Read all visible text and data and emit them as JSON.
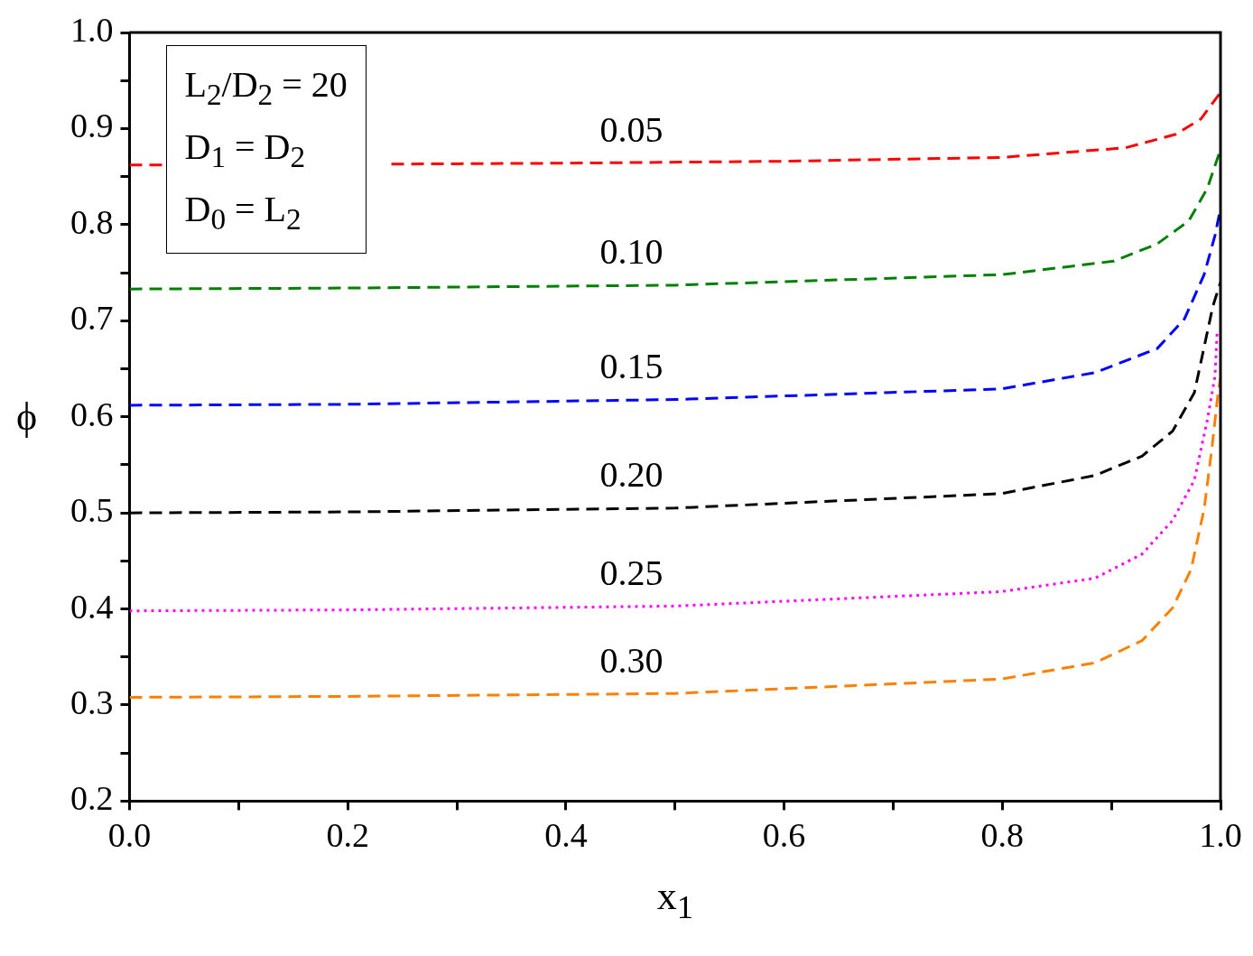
{
  "chart_data": {
    "type": "line",
    "xlabel": "x$_{1}$",
    "ylabel": "ϕ",
    "annotations": [
      "L$_{2}$/D$_{2}$ = 20",
      "D$_{1}$ = D$_{2}$",
      "D$_{0}$ = L$_{2}$"
    ],
    "xlim": [
      0,
      1
    ],
    "ylim": [
      0.2,
      1.0
    ],
    "xticks": [
      {
        "value": 0,
        "label": "0.0"
      },
      {
        "value": 0.1,
        "label": null
      },
      {
        "value": 0.2,
        "label": "0.2"
      },
      {
        "value": 0.3,
        "label": null
      },
      {
        "value": 0.4,
        "label": "0.4"
      },
      {
        "value": 0.5,
        "label": null
      },
      {
        "value": 0.6,
        "label": "0.6"
      },
      {
        "value": 0.7,
        "label": null
      },
      {
        "value": 0.8,
        "label": "0.8"
      },
      {
        "value": 0.9,
        "label": null
      },
      {
        "value": 1,
        "label": "1.0"
      }
    ],
    "yticks": [
      {
        "value": 0.2,
        "label": "0.2"
      },
      {
        "value": 0.25,
        "label": null
      },
      {
        "value": 0.3,
        "label": "0.3"
      },
      {
        "value": 0.35,
        "label": null
      },
      {
        "value": 0.4,
        "label": "0.4"
      },
      {
        "value": 0.45,
        "label": null
      },
      {
        "value": 0.5,
        "label": "0.5"
      },
      {
        "value": 0.55,
        "label": null
      },
      {
        "value": 0.6,
        "label": "0.6"
      },
      {
        "value": 0.65,
        "label": null
      },
      {
        "value": 0.7,
        "label": "0.7"
      },
      {
        "value": 0.75,
        "label": null
      },
      {
        "value": 0.8,
        "label": "0.8"
      },
      {
        "value": 0.85,
        "label": null
      },
      {
        "value": 0.9,
        "label": "0.9"
      },
      {
        "value": 0.95,
        "label": null
      },
      {
        "value": 1,
        "label": "1.0"
      }
    ],
    "grid": false,
    "legend": false,
    "marker": "none",
    "series": [
      {
        "name": "0.05",
        "color": "#ff0000",
        "line_style": "dashed",
        "x": [
          0,
          0.03,
          0.1,
          0.2,
          0.24,
          0.4,
          0.6,
          0.8,
          0.913,
          0.959,
          0.982,
          0.999
        ],
        "values": [
          0.862,
          0.862,
          null,
          null,
          0.863,
          0.864,
          0.866,
          0.87,
          0.88,
          0.894,
          0.91,
          0.936
        ]
      },
      {
        "name": "0.10",
        "color": "#008000",
        "line_style": "dashed",
        "x": [
          0,
          0.2,
          0.5,
          0.8,
          0.902,
          0.942,
          0.971,
          0.988,
          0.999
        ],
        "values": [
          0.733,
          0.734,
          0.737,
          0.748,
          0.762,
          0.78,
          0.804,
          0.838,
          0.875
        ]
      },
      {
        "name": "0.15",
        "color": "#0000ff",
        "line_style": "dashed",
        "x": [
          0,
          0.2,
          0.5,
          0.799,
          0.885,
          0.942,
          0.967,
          0.985,
          0.995,
          1.0
        ],
        "values": [
          0.612,
          0.613,
          0.618,
          0.629,
          0.646,
          0.671,
          0.702,
          0.748,
          0.789,
          0.817
        ]
      },
      {
        "name": "0.20",
        "color": "#000000",
        "line_style": "dashed",
        "x": [
          0,
          0.2,
          0.5,
          0.799,
          0.885,
          0.928,
          0.956,
          0.976,
          0.993,
          1.0
        ],
        "values": [
          0.5,
          0.501,
          0.505,
          0.52,
          0.539,
          0.559,
          0.585,
          0.625,
          0.715,
          0.74
        ]
      },
      {
        "name": "0.25",
        "color": "#ff00ff",
        "line_style": "dotted",
        "x": [
          0,
          0.2,
          0.5,
          0.799,
          0.885,
          0.928,
          0.956,
          0.976,
          0.988,
          0.995,
          0.997
        ],
        "values": [
          0.398,
          0.399,
          0.403,
          0.418,
          0.432,
          0.457,
          0.492,
          0.534,
          0.597,
          0.643,
          0.69
        ]
      },
      {
        "name": "0.30",
        "color": "#ff8000",
        "line_style": "dashed",
        "x": [
          0,
          0.2,
          0.5,
          0.799,
          0.885,
          0.928,
          0.956,
          0.973,
          0.985,
          0.992,
          0.998,
          1.0
        ],
        "values": [
          0.308,
          0.309,
          0.312,
          0.327,
          0.344,
          0.367,
          0.401,
          0.441,
          0.504,
          0.566,
          0.627,
          0.64
        ]
      }
    ]
  }
}
